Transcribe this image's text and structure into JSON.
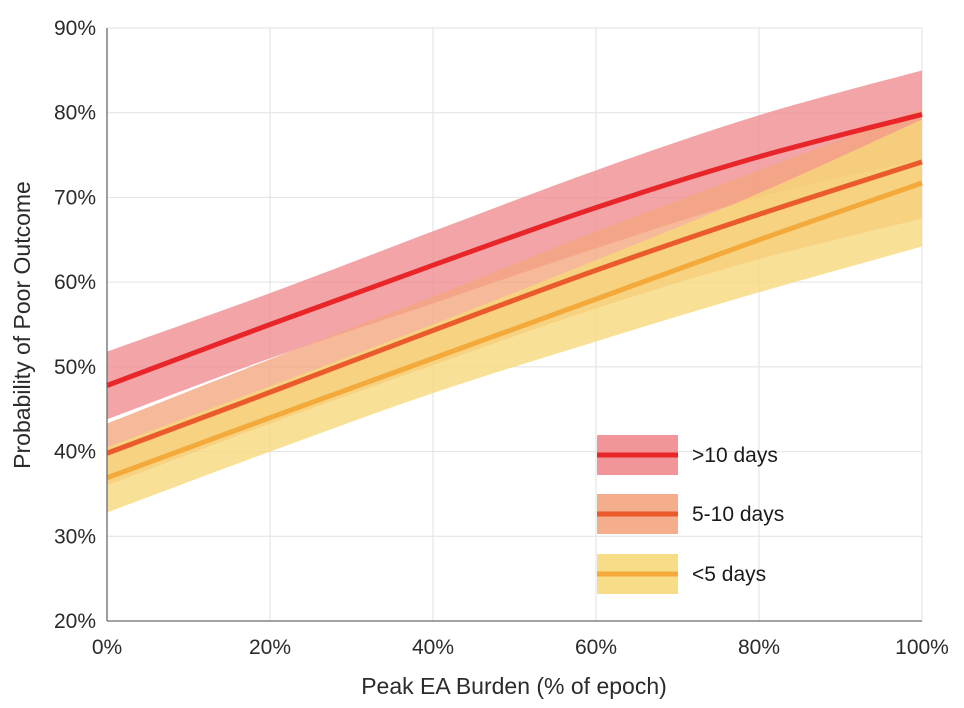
{
  "chart_data": {
    "type": "line",
    "xlabel": "Peak EA Burden (% of epoch)",
    "ylabel": "Probability of Poor Outcome",
    "xlim": [
      0,
      100
    ],
    "ylim": [
      20,
      90
    ],
    "x_ticks": [
      0,
      20,
      40,
      60,
      80,
      100
    ],
    "y_ticks": [
      20,
      30,
      40,
      50,
      60,
      70,
      80,
      90
    ],
    "x_tick_labels": [
      "0%",
      "20%",
      "40%",
      "60%",
      "80%",
      "100%"
    ],
    "y_tick_labels": [
      "20%",
      "30%",
      "40%",
      "50%",
      "60%",
      "70%",
      "80%",
      "90%"
    ],
    "grid": true,
    "legend_position": "bottom-right",
    "x": [
      0,
      20,
      40,
      60,
      80,
      100
    ],
    "series": [
      {
        "name": ">10 days",
        "color": "#e8262a",
        "band_color": "#f08a8e",
        "values": [
          47.8,
          55.0,
          62.0,
          68.8,
          74.8,
          79.8
        ],
        "lower": [
          43.8,
          51.0,
          57.5,
          64.0,
          70.0,
          74.5
        ],
        "upper": [
          51.8,
          58.7,
          66.0,
          73.2,
          79.7,
          85.0
        ]
      },
      {
        "name": "5-10 days",
        "color": "#ea5a2a",
        "band_color": "#f3a57e",
        "values": [
          39.8,
          47.0,
          54.3,
          61.4,
          68.0,
          74.2
        ],
        "lower": [
          36.0,
          43.3,
          50.2,
          56.9,
          62.7,
          67.5
        ],
        "upper": [
          43.3,
          50.9,
          58.3,
          66.0,
          73.2,
          80.4
        ]
      },
      {
        "name": "<5 days",
        "color": "#f3aa3a",
        "band_color": "#f6d97a",
        "values": [
          36.9,
          44.0,
          51.0,
          58.0,
          65.0,
          71.7
        ],
        "lower": [
          32.8,
          40.0,
          46.9,
          53.0,
          58.8,
          64.2
        ],
        "upper": [
          40.5,
          47.7,
          55.0,
          62.6,
          70.5,
          79.2
        ]
      }
    ]
  }
}
